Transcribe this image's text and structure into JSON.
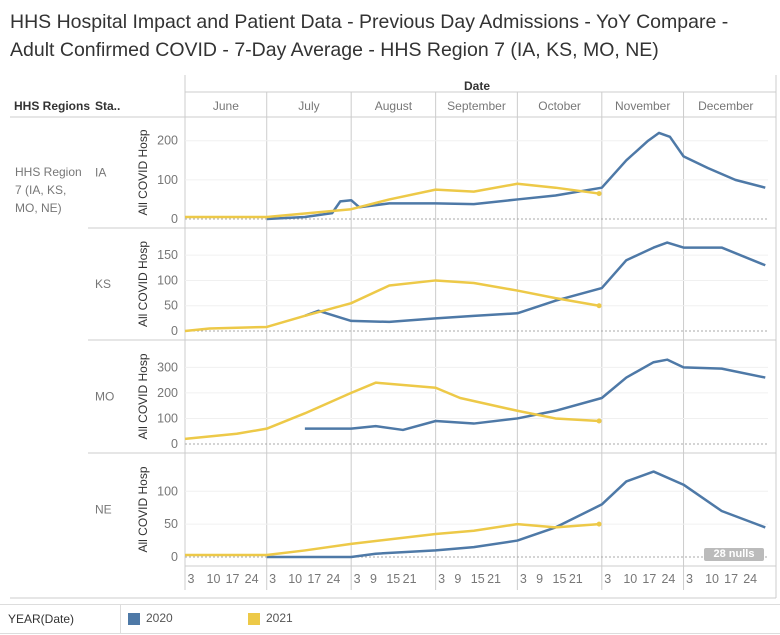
{
  "title": "HHS Hospital Impact and Patient Data - Previous Day Admissions - YoY Compare - Adult Confirmed COVID - 7-Day Average - HHS Region 7 (IA, KS, MO, NE)",
  "headers": {
    "date": "Date",
    "regions": "HHS Regions",
    "state": "Sta.."
  },
  "region": "HHS Region 7 (IA, KS, MO, NE)",
  "nulls_badge": "28 nulls",
  "legend": {
    "field": "YEAR(Date)",
    "items": [
      {
        "label": "2020",
        "color": "#4e79a7"
      },
      {
        "label": "2021",
        "color": "#edc948"
      }
    ]
  },
  "chart_data": {
    "type": "line",
    "x_unit": "days since June 1",
    "months": [
      "June",
      "July",
      "August",
      "September",
      "October",
      "November",
      "December"
    ],
    "month_days": [
      30,
      31,
      31,
      30,
      31,
      30,
      31
    ],
    "day_ticks": [
      [
        "3",
        "10",
        "17",
        "24"
      ],
      [
        "3",
        "10",
        "17",
        "24"
      ],
      [
        "3",
        "9",
        "15",
        "21"
      ],
      [
        "3",
        "9",
        "15",
        "21"
      ],
      [
        "3",
        "9",
        "15",
        "21"
      ],
      [
        "3",
        "10",
        "17",
        "24"
      ],
      [
        "3",
        "10",
        "17",
        "24"
      ]
    ],
    "ylabel": "All COVID Hosp",
    "panels": [
      {
        "state": "IA",
        "ylim": [
          0,
          230
        ],
        "yticks": [
          0,
          100,
          200
        ],
        "series": [
          {
            "name": "2020",
            "x": [
              30,
              44,
              54,
              57,
              61,
              64,
              75,
              92,
              106,
              122,
              136,
              153,
              162,
              170,
              174,
              178,
              183,
              192,
              202,
              213
            ],
            "y": [
              0,
              5,
              15,
              45,
              48,
              30,
              40,
              40,
              38,
              50,
              60,
              80,
              150,
              200,
              220,
              210,
              160,
              130,
              100,
              80
            ]
          },
          {
            "name": "2021",
            "x": [
              0,
              30,
              61,
              75,
              92,
              106,
              122,
              136,
              152
            ],
            "y": [
              5,
              5,
              25,
              50,
              75,
              70,
              90,
              80,
              65
            ]
          }
        ]
      },
      {
        "state": "KS",
        "ylim": [
          0,
          180
        ],
        "yticks": [
          0,
          50,
          100,
          150
        ],
        "series": [
          {
            "name": "2020",
            "x": [
              44,
              49,
              61,
              75,
              92,
              106,
              122,
              136,
              153,
              162,
              172,
              177,
              183,
              197,
              213
            ],
            "y": [
              30,
              40,
              20,
              18,
              25,
              30,
              35,
              60,
              85,
              140,
              165,
              175,
              165,
              165,
              130
            ]
          },
          {
            "name": "2021",
            "x": [
              0,
              9,
              30,
              44,
              61,
              75,
              92,
              106,
              122,
              136,
              152
            ],
            "y": [
              0,
              5,
              8,
              30,
              55,
              90,
              100,
              95,
              80,
              65,
              50
            ]
          }
        ]
      },
      {
        "state": "MO",
        "ylim": [
          0,
          360
        ],
        "yticks": [
          0,
          100,
          200,
          300
        ],
        "series": [
          {
            "name": "2020",
            "x": [
              44,
              61,
              70,
              80,
              92,
              106,
              122,
              136,
              153,
              162,
              172,
              177,
              183,
              197,
              213
            ],
            "y": [
              60,
              60,
              70,
              55,
              90,
              80,
              100,
              130,
              180,
              260,
              320,
              330,
              300,
              295,
              260
            ]
          },
          {
            "name": "2021",
            "x": [
              0,
              19,
              30,
              44,
              61,
              70,
              92,
              101,
              122,
              136,
              152
            ],
            "y": [
              20,
              40,
              60,
              120,
              200,
              240,
              220,
              180,
              130,
              100,
              90
            ]
          }
        ]
      },
      {
        "state": "NE",
        "ylim": [
          0,
          140
        ],
        "yticks": [
          0,
          50,
          100
        ],
        "series": [
          {
            "name": "2020",
            "x": [
              30,
              61,
              70,
              92,
              106,
              122,
              136,
              153,
              162,
              172,
              183,
              197,
              213
            ],
            "y": [
              0,
              0,
              5,
              10,
              15,
              25,
              45,
              80,
              115,
              130,
              110,
              70,
              45
            ]
          },
          {
            "name": "2021",
            "x": [
              0,
              30,
              44,
              61,
              92,
              106,
              122,
              136,
              152
            ],
            "y": [
              3,
              3,
              10,
              20,
              35,
              40,
              50,
              45,
              50
            ]
          }
        ]
      }
    ]
  }
}
